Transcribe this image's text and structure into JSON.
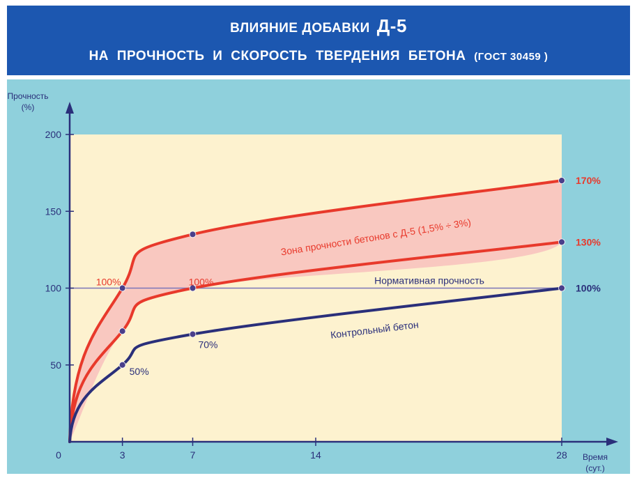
{
  "header": {
    "title_line1": "ВЛИЯНИЕ ДОБАВКИ",
    "title_line1_big": "Д-5",
    "title_line2": "НА ПРОЧНОСТЬ И СКОРОСТЬ ТВЕРДЕНИЯ БЕТОНА",
    "title_line2_small": "(ГОСТ 30459 )"
  },
  "colors": {
    "header_bg": "#1c57b0",
    "outer_bg": "#8fd0dc",
    "plot_bg": "#fdf2cf",
    "zone_fill": "#f9c8c0",
    "red": "#e8392b",
    "navy": "#2a2f7a",
    "norm_line": "#7b75b8"
  },
  "chart_data": {
    "type": "line",
    "ylabel": "Прочность",
    "ylabel_unit": "(%)",
    "xlabel": "Время",
    "xlabel_unit": "(сут.)",
    "origin_label": "0",
    "xlim": [
      0,
      28
    ],
    "ylim": [
      0,
      200
    ],
    "x_ticks": [
      3,
      7,
      14,
      28
    ],
    "x_tick_labels": [
      "3",
      "7",
      "14",
      "28"
    ],
    "y_ticks": [
      50,
      100,
      150,
      200
    ],
    "y_tick_labels": [
      "50",
      "100",
      "150",
      "200"
    ],
    "series": [
      {
        "key": "upper",
        "x": [
          0,
          3,
          7,
          28
        ],
        "y": [
          0,
          100,
          135,
          170
        ],
        "color": "red",
        "end_label": "170%"
      },
      {
        "key": "lower",
        "x": [
          0,
          3,
          7,
          28
        ],
        "y": [
          0,
          72,
          100,
          130
        ],
        "color": "red",
        "end_label": "130%"
      },
      {
        "key": "control",
        "name": "Контрольный бетон",
        "x": [
          0,
          3,
          7,
          28
        ],
        "y": [
          0,
          50,
          70,
          100
        ],
        "color": "navy",
        "end_label": "100%"
      }
    ],
    "reference_line": {
      "name": "Нормативная прочность",
      "y": 100
    },
    "zone_label": "Зона прочности бетонов с Д-5 (1,5% ÷ 3%)",
    "annotations": [
      {
        "text": "100%",
        "x": 3,
        "y": 100,
        "color": "red"
      },
      {
        "text": "100%",
        "x": 7,
        "y": 100,
        "color": "red"
      },
      {
        "text": "50%",
        "x": 3,
        "y": 50,
        "color": "navy"
      },
      {
        "text": "70%",
        "x": 7,
        "y": 70,
        "color": "navy"
      }
    ]
  }
}
